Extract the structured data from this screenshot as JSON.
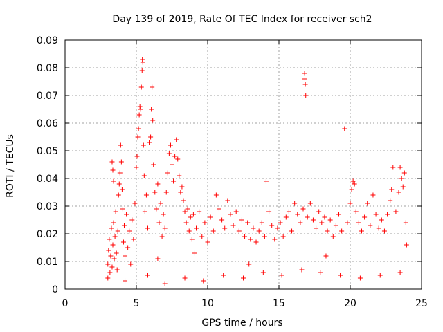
{
  "chart_data": {
    "type": "scatter",
    "title": "Day 139 of 2019, Rate Of TEC Index for receiver sch2",
    "xlabel": "GPS time / hours",
    "ylabel": "ROTI / TECUs",
    "xlim": [
      0,
      25
    ],
    "ylim": [
      0,
      0.09
    ],
    "xticks": [
      0,
      5,
      10,
      15,
      20,
      25
    ],
    "xtick_labels": [
      "0",
      "5",
      "10",
      "15",
      "20",
      "25"
    ],
    "yticks": [
      0,
      0.01,
      0.02,
      0.03,
      0.04,
      0.05,
      0.06,
      0.07,
      0.08,
      0.09
    ],
    "ytick_labels": [
      "0",
      "0.01",
      "0.02",
      "0.03",
      "0.04",
      "0.05",
      "0.06",
      "0.07",
      "0.08",
      "0.09"
    ],
    "grid": true,
    "marker": "+",
    "color": "#ff0000",
    "series": [
      {
        "points": [
          [
            3.0,
            0.009
          ],
          [
            3.05,
            0.014
          ],
          [
            3.1,
            0.018
          ],
          [
            3.15,
            0.006
          ],
          [
            3.2,
            0.012
          ],
          [
            3.25,
            0.022
          ],
          [
            3.3,
            0.008
          ],
          [
            3.35,
            0.016
          ],
          [
            3.4,
            0.024
          ],
          [
            3.45,
            0.011
          ],
          [
            3.5,
            0.019
          ],
          [
            3.55,
            0.028
          ],
          [
            3.6,
            0.013
          ],
          [
            3.65,
            0.007
          ],
          [
            3.7,
            0.021
          ],
          [
            3.75,
            0.034
          ],
          [
            3.8,
            0.038
          ],
          [
            3.85,
            0.042
          ],
          [
            3.9,
            0.052
          ],
          [
            3.95,
            0.046
          ],
          [
            3.3,
            0.046
          ],
          [
            3.35,
            0.043
          ],
          [
            3.4,
            0.039
          ],
          [
            4.0,
            0.036
          ],
          [
            4.05,
            0.029
          ],
          [
            4.1,
            0.017
          ],
          [
            4.15,
            0.023
          ],
          [
            4.2,
            0.012
          ],
          [
            4.3,
            0.027
          ],
          [
            4.4,
            0.015
          ],
          [
            4.5,
            0.021
          ],
          [
            4.6,
            0.009
          ],
          [
            4.7,
            0.025
          ],
          [
            4.8,
            0.018
          ],
          [
            4.9,
            0.031
          ],
          [
            5.0,
            0.044
          ],
          [
            5.05,
            0.048
          ],
          [
            5.1,
            0.055
          ],
          [
            5.15,
            0.058
          ],
          [
            5.2,
            0.063
          ],
          [
            5.25,
            0.066
          ],
          [
            5.3,
            0.065
          ],
          [
            5.35,
            0.073
          ],
          [
            5.4,
            0.079
          ],
          [
            5.42,
            0.083
          ],
          [
            5.45,
            0.082
          ],
          [
            5.5,
            0.052
          ],
          [
            5.55,
            0.041
          ],
          [
            5.6,
            0.028
          ],
          [
            5.7,
            0.034
          ],
          [
            5.8,
            0.022
          ],
          [
            5.9,
            0.053
          ],
          [
            6.0,
            0.055
          ],
          [
            6.05,
            0.065
          ],
          [
            6.1,
            0.073
          ],
          [
            6.15,
            0.061
          ],
          [
            6.2,
            0.045
          ],
          [
            6.3,
            0.035
          ],
          [
            6.4,
            0.029
          ],
          [
            6.5,
            0.038
          ],
          [
            6.6,
            0.024
          ],
          [
            6.7,
            0.031
          ],
          [
            6.8,
            0.019
          ],
          [
            6.9,
            0.027
          ],
          [
            7.0,
            0.022
          ],
          [
            7.1,
            0.035
          ],
          [
            7.2,
            0.042
          ],
          [
            7.3,
            0.049
          ],
          [
            7.4,
            0.052
          ],
          [
            7.5,
            0.045
          ],
          [
            7.6,
            0.039
          ],
          [
            7.7,
            0.048
          ],
          [
            7.8,
            0.054
          ],
          [
            7.9,
            0.047
          ],
          [
            8.0,
            0.041
          ],
          [
            8.1,
            0.035
          ],
          [
            8.2,
            0.037
          ],
          [
            8.3,
            0.032
          ],
          [
            8.4,
            0.028
          ],
          [
            8.5,
            0.024
          ],
          [
            8.6,
            0.029
          ],
          [
            8.7,
            0.021
          ],
          [
            8.8,
            0.026
          ],
          [
            8.9,
            0.018
          ],
          [
            9.0,
            0.027
          ],
          [
            9.2,
            0.022
          ],
          [
            9.4,
            0.028
          ],
          [
            9.6,
            0.019
          ],
          [
            9.8,
            0.024
          ],
          [
            10.0,
            0.017
          ],
          [
            10.2,
            0.026
          ],
          [
            10.4,
            0.021
          ],
          [
            10.6,
            0.034
          ],
          [
            10.8,
            0.029
          ],
          [
            11.0,
            0.025
          ],
          [
            11.2,
            0.022
          ],
          [
            11.4,
            0.032
          ],
          [
            11.6,
            0.027
          ],
          [
            11.8,
            0.023
          ],
          [
            12.0,
            0.028
          ],
          [
            12.2,
            0.021
          ],
          [
            12.4,
            0.025
          ],
          [
            12.6,
            0.019
          ],
          [
            12.8,
            0.024
          ],
          [
            13.0,
            0.018
          ],
          [
            13.2,
            0.022
          ],
          [
            13.4,
            0.017
          ],
          [
            13.6,
            0.021
          ],
          [
            13.8,
            0.024
          ],
          [
            14.0,
            0.019
          ],
          [
            14.1,
            0.039
          ],
          [
            14.3,
            0.028
          ],
          [
            14.5,
            0.023
          ],
          [
            14.7,
            0.018
          ],
          [
            14.9,
            0.022
          ],
          [
            15.1,
            0.024
          ],
          [
            15.3,
            0.019
          ],
          [
            15.5,
            0.026
          ],
          [
            15.7,
            0.028
          ],
          [
            15.9,
            0.021
          ],
          [
            16.1,
            0.031
          ],
          [
            16.3,
            0.027
          ],
          [
            16.5,
            0.024
          ],
          [
            16.7,
            0.029
          ],
          [
            16.8,
            0.078
          ],
          [
            16.82,
            0.076
          ],
          [
            16.85,
            0.074
          ],
          [
            16.88,
            0.07
          ],
          [
            17.0,
            0.026
          ],
          [
            17.2,
            0.031
          ],
          [
            17.4,
            0.025
          ],
          [
            17.6,
            0.022
          ],
          [
            17.8,
            0.028
          ],
          [
            18.0,
            0.024
          ],
          [
            18.2,
            0.026
          ],
          [
            18.4,
            0.021
          ],
          [
            18.6,
            0.025
          ],
          [
            18.8,
            0.019
          ],
          [
            19.0,
            0.023
          ],
          [
            19.2,
            0.027
          ],
          [
            19.4,
            0.021
          ],
          [
            19.6,
            0.058
          ],
          [
            19.8,
            0.024
          ],
          [
            20.0,
            0.031
          ],
          [
            20.1,
            0.036
          ],
          [
            20.2,
            0.039
          ],
          [
            20.3,
            0.038
          ],
          [
            20.4,
            0.028
          ],
          [
            20.6,
            0.024
          ],
          [
            20.8,
            0.021
          ],
          [
            21.0,
            0.026
          ],
          [
            21.2,
            0.031
          ],
          [
            21.4,
            0.023
          ],
          [
            21.6,
            0.034
          ],
          [
            21.8,
            0.027
          ],
          [
            22.0,
            0.022
          ],
          [
            22.2,
            0.025
          ],
          [
            22.4,
            0.021
          ],
          [
            22.6,
            0.027
          ],
          [
            22.8,
            0.032
          ],
          [
            22.9,
            0.036
          ],
          [
            23.0,
            0.044
          ],
          [
            23.2,
            0.028
          ],
          [
            23.4,
            0.035
          ],
          [
            23.5,
            0.044
          ],
          [
            23.6,
            0.04
          ],
          [
            23.7,
            0.037
          ],
          [
            23.8,
            0.042
          ],
          [
            23.9,
            0.024
          ],
          [
            23.95,
            0.016
          ],
          [
            3.0,
            0.004
          ],
          [
            4.2,
            0.003
          ],
          [
            5.8,
            0.005
          ],
          [
            7.0,
            0.002
          ],
          [
            8.4,
            0.004
          ],
          [
            9.7,
            0.003
          ],
          [
            11.1,
            0.005
          ],
          [
            12.5,
            0.004
          ],
          [
            13.9,
            0.006
          ],
          [
            15.2,
            0.005
          ],
          [
            16.6,
            0.007
          ],
          [
            17.9,
            0.006
          ],
          [
            19.3,
            0.005
          ],
          [
            20.7,
            0.004
          ],
          [
            22.1,
            0.005
          ],
          [
            23.5,
            0.006
          ],
          [
            6.5,
            0.011
          ],
          [
            9.1,
            0.013
          ],
          [
            12.9,
            0.009
          ],
          [
            18.3,
            0.012
          ]
        ]
      }
    ]
  }
}
